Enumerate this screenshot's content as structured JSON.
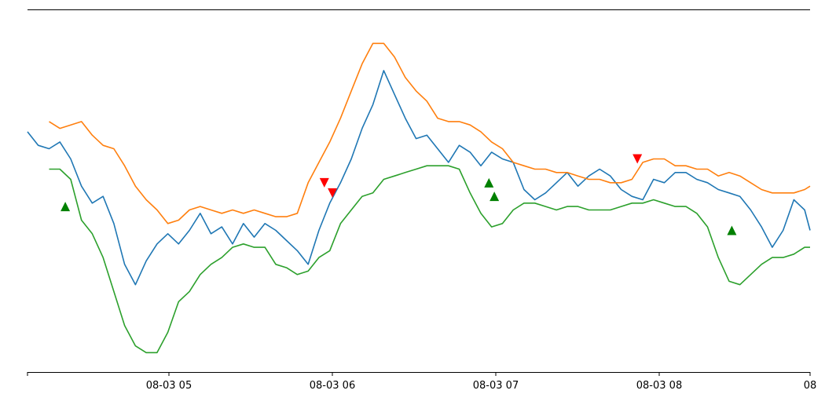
{
  "chart_data": {
    "type": "line",
    "x_axis": {
      "kind": "time",
      "range": [
        "08-03 04:05",
        "08-03 08:55"
      ],
      "tick_labels": [
        "08-03 05",
        "08-03 06",
        "08-03 07",
        "08-03 08",
        "08"
      ]
    },
    "y_range": [
      0,
      100
    ],
    "grid": false,
    "legend": "none",
    "colors": {
      "price": "#1f77b4",
      "upper": "#ff7f0e",
      "lower": "#2ca02c",
      "sell_marker": "#ff0000",
      "buy_marker": "#008000"
    },
    "series": [
      {
        "key": "price",
        "x": [
          "04:05",
          "04:09",
          "04:13",
          "04:17",
          "04:21",
          "04:25",
          "04:29",
          "04:33",
          "04:37",
          "04:41",
          "04:45",
          "04:49",
          "04:53",
          "04:57",
          "05:01",
          "05:05",
          "05:09",
          "05:13",
          "05:17",
          "05:21",
          "05:25",
          "05:29",
          "05:33",
          "05:37",
          "05:41",
          "05:45",
          "05:49",
          "05:53",
          "05:57",
          "06:01",
          "06:05",
          "06:09",
          "06:13",
          "06:17",
          "06:21",
          "06:25",
          "06:29",
          "06:33",
          "06:37",
          "06:41",
          "06:45",
          "06:49",
          "06:53",
          "06:57",
          "07:01",
          "07:05",
          "07:09",
          "07:13",
          "07:17",
          "07:21",
          "07:25",
          "07:29",
          "07:33",
          "07:37",
          "07:41",
          "07:45",
          "07:49",
          "07:53",
          "07:57",
          "08:01",
          "08:05",
          "08:09",
          "08:13",
          "08:17",
          "08:21",
          "08:25",
          "08:29",
          "08:33",
          "08:37",
          "08:41",
          "08:45",
          "08:49",
          "08:53",
          "08:55"
        ],
        "y": [
          67,
          63,
          62,
          64,
          59,
          51,
          46,
          48,
          40,
          28,
          22,
          29,
          34,
          37,
          34,
          38,
          43,
          37,
          39,
          34,
          40,
          36,
          40,
          38,
          35,
          32,
          28,
          38,
          46,
          52,
          59,
          68,
          75,
          85,
          78,
          71,
          65,
          66,
          62,
          58,
          63,
          61,
          57,
          61,
          59,
          58,
          50,
          47,
          49,
          52,
          55,
          51,
          54,
          56,
          54,
          50,
          48,
          47,
          53,
          52,
          55,
          55,
          53,
          52,
          50,
          49,
          48,
          44,
          39,
          33,
          38,
          47,
          44,
          38
        ]
      },
      {
        "key": "upper",
        "x": [
          "04:13",
          "04:17",
          "04:21",
          "04:25",
          "04:29",
          "04:33",
          "04:37",
          "04:41",
          "04:45",
          "04:49",
          "04:53",
          "04:57",
          "05:01",
          "05:05",
          "05:09",
          "05:13",
          "05:17",
          "05:21",
          "05:25",
          "05:29",
          "05:33",
          "05:37",
          "05:41",
          "05:45",
          "05:49",
          "05:53",
          "05:57",
          "06:01",
          "06:05",
          "06:09",
          "06:13",
          "06:17",
          "06:21",
          "06:25",
          "06:29",
          "06:33",
          "06:37",
          "06:41",
          "06:45",
          "06:49",
          "06:53",
          "06:57",
          "07:01",
          "07:05",
          "07:09",
          "07:13",
          "07:17",
          "07:21",
          "07:25",
          "07:29",
          "07:33",
          "07:37",
          "07:41",
          "07:45",
          "07:49",
          "07:53",
          "07:57",
          "08:01",
          "08:05",
          "08:09",
          "08:13",
          "08:17",
          "08:21",
          "08:25",
          "08:29",
          "08:33",
          "08:37",
          "08:41",
          "08:45",
          "08:49",
          "08:53",
          "08:55"
        ],
        "y": [
          70,
          68,
          69,
          70,
          66,
          63,
          62,
          57,
          51,
          47,
          44,
          40,
          41,
          44,
          45,
          44,
          43,
          44,
          43,
          44,
          43,
          42,
          42,
          43,
          52,
          58,
          64,
          71,
          79,
          87,
          93,
          93,
          89,
          83,
          79,
          76,
          71,
          70,
          70,
          69,
          67,
          64,
          62,
          58,
          57,
          56,
          56,
          55,
          55,
          54,
          53,
          53,
          52,
          52,
          53,
          58,
          59,
          59,
          57,
          57,
          56,
          56,
          54,
          55,
          54,
          52,
          50,
          49,
          49,
          49,
          50,
          51
        ]
      },
      {
        "key": "lower",
        "x": [
          "04:13",
          "04:17",
          "04:21",
          "04:25",
          "04:29",
          "04:33",
          "04:37",
          "04:41",
          "04:45",
          "04:49",
          "04:53",
          "04:57",
          "05:01",
          "05:05",
          "05:09",
          "05:13",
          "05:17",
          "05:21",
          "05:25",
          "05:29",
          "05:33",
          "05:37",
          "05:41",
          "05:45",
          "05:49",
          "05:53",
          "05:57",
          "06:01",
          "06:05",
          "06:09",
          "06:13",
          "06:17",
          "06:21",
          "06:25",
          "06:29",
          "06:33",
          "06:37",
          "06:41",
          "06:45",
          "06:49",
          "06:53",
          "06:57",
          "07:01",
          "07:05",
          "07:09",
          "07:13",
          "07:17",
          "07:21",
          "07:25",
          "07:29",
          "07:33",
          "07:37",
          "07:41",
          "07:45",
          "07:49",
          "07:53",
          "07:57",
          "08:01",
          "08:05",
          "08:09",
          "08:13",
          "08:17",
          "08:21",
          "08:25",
          "08:29",
          "08:33",
          "08:37",
          "08:41",
          "08:45",
          "08:49",
          "08:53",
          "08:55"
        ],
        "y": [
          56,
          56,
          53,
          41,
          37,
          30,
          20,
          10,
          4,
          2,
          2,
          8,
          17,
          20,
          25,
          28,
          30,
          33,
          34,
          33,
          33,
          28,
          27,
          25,
          26,
          30,
          32,
          40,
          44,
          48,
          49,
          53,
          54,
          55,
          56,
          57,
          57,
          57,
          56,
          49,
          43,
          39,
          40,
          44,
          46,
          46,
          45,
          44,
          45,
          45,
          44,
          44,
          44,
          45,
          46,
          46,
          47,
          46,
          45,
          45,
          43,
          39,
          30,
          23,
          22,
          25,
          28,
          30,
          30,
          31,
          33,
          33
        ]
      }
    ],
    "markers": {
      "sell": [
        {
          "x": "05:55",
          "y": 52
        },
        {
          "x": "05:58",
          "y": 49
        },
        {
          "x": "07:51",
          "y": 59
        }
      ],
      "buy": [
        {
          "x": "04:19",
          "y": 45
        },
        {
          "x": "06:56",
          "y": 52
        },
        {
          "x": "06:58",
          "y": 48
        },
        {
          "x": "08:26",
          "y": 38
        }
      ]
    }
  }
}
